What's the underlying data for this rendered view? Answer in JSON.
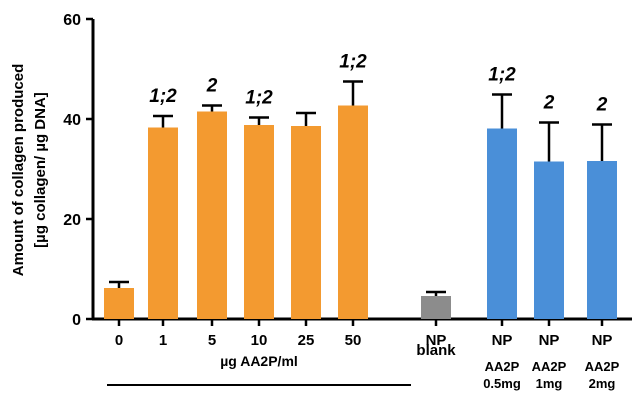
{
  "chart_data": {
    "type": "bar",
    "title": "",
    "ylabel": "Amount of collagen produced",
    "ylabel_unit": "[µg collagen/ µg DNA]",
    "ylim": [
      0,
      60
    ],
    "yticks": [
      0,
      20,
      40,
      60
    ],
    "grid": false,
    "categories": [
      "0",
      "1",
      "5",
      "10",
      "25",
      "50",
      "NP",
      "NP",
      "NP",
      "NP"
    ],
    "sublabels": [
      "",
      "",
      "",
      "",
      "",
      "",
      "blank",
      "AA2P 0.5mg",
      "AA2P 1mg",
      "AA2P 2mg"
    ],
    "values": [
      6.2,
      38.3,
      41.5,
      38.8,
      38.6,
      42.7,
      4.6,
      38.1,
      31.5,
      31.6
    ],
    "errors": [
      1.2,
      2.3,
      1.2,
      1.5,
      2.6,
      4.8,
      0.8,
      6.8,
      7.8,
      7.3
    ],
    "significance": [
      "",
      "1;2",
      "2",
      "1;2",
      "",
      "1;2",
      "",
      "1;2",
      "2",
      "2"
    ],
    "colors": [
      "#F39A30",
      "#F39A30",
      "#F39A30",
      "#F39A30",
      "#F39A30",
      "#F39A30",
      "#8C8C8C",
      "#4A8FD8",
      "#4A8FD8",
      "#4A8FD8"
    ],
    "group_label": "µg AA2P/ml"
  }
}
